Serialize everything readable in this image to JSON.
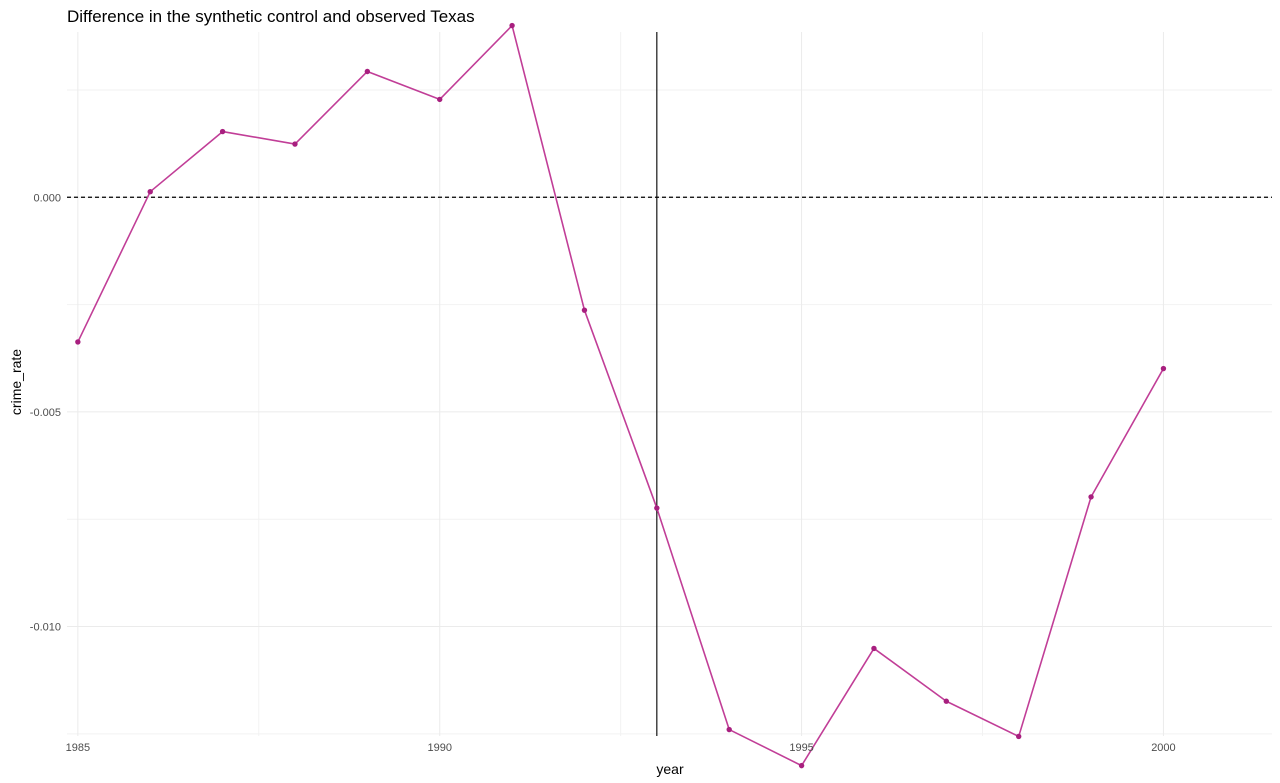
{
  "chart_data": {
    "type": "line",
    "title": "Difference in the synthetic control and observed Texas",
    "xlabel": "year",
    "ylabel": "crime_rate",
    "xlim": [
      1984.85,
      2001.5
    ],
    "ylim": [
      -0.01255,
      0.00385
    ],
    "x_ticks": [
      1985,
      1990,
      1995,
      2000
    ],
    "x_tick_labels": [
      "1985",
      "1990",
      "1995",
      "2000"
    ],
    "x_minor_ticks": [
      1987.5,
      1992.5,
      1997.5
    ],
    "y_ticks": [
      0.0,
      -0.005,
      -0.01
    ],
    "y_tick_labels": [
      "0.000",
      "-0.005",
      "-0.010"
    ],
    "y_minor_ticks": [
      0.0025,
      -0.0025,
      -0.0075,
      -0.0125
    ],
    "grid": true,
    "reference_hline": {
      "y": 0.0,
      "style": "dashed",
      "color": "#000000"
    },
    "reference_vline": {
      "x": 1993,
      "style": "solid",
      "color": "#000000"
    },
    "series": [
      {
        "color": "#c13e97",
        "point_color": "#a81f7f",
        "x": [
          1985,
          1986,
          1987,
          1988,
          1989,
          1990,
          1991,
          1992,
          1993,
          1994,
          1995,
          1996,
          1997,
          1998,
          1999,
          2000
        ],
        "values": [
          -0.00337,
          0.00013,
          0.00153,
          0.00124,
          0.00293,
          0.00228,
          0.004,
          -0.00263,
          -0.00724,
          -0.0124,
          -0.01324,
          -0.01051,
          -0.01174,
          -0.01256,
          -0.00698,
          -0.00399
        ]
      }
    ]
  }
}
